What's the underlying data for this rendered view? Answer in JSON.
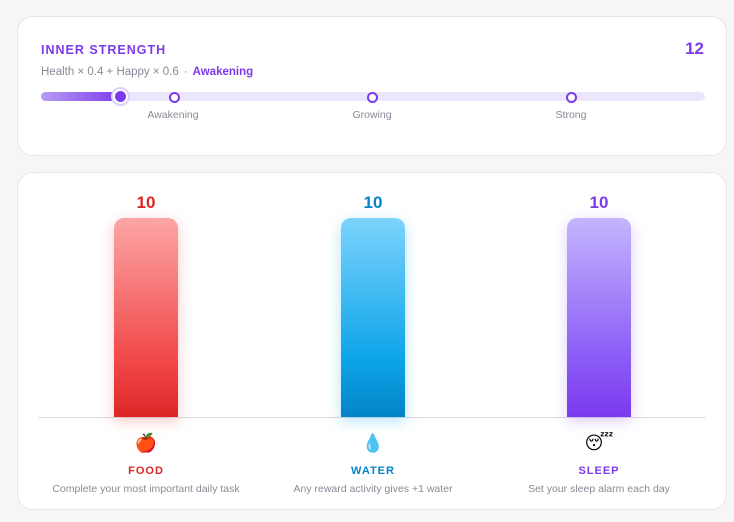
{
  "strength": {
    "title": "INNER STRENGTH",
    "score": "12",
    "formula": "Health × 0.4 + Happy × 0.6",
    "separator": "·",
    "stage": "Awakening",
    "progress_fraction": 0.12,
    "milestones": [
      "Awakening",
      "Growing",
      "Strong"
    ]
  },
  "stats": {
    "food": {
      "value": "10",
      "icon": "apple-icon",
      "glyph": "🍎",
      "label": "FOOD",
      "description": "Complete your most important daily task",
      "color": "#dc2626"
    },
    "water": {
      "value": "10",
      "icon": "droplet-icon",
      "glyph": "💧",
      "label": "WATER",
      "description": "Any reward activity gives +1 water",
      "color": "#0284c7"
    },
    "sleep": {
      "value": "10",
      "icon": "sleeping-face-icon",
      "glyph": "😴",
      "label": "SLEEP",
      "description": "Set your sleep alarm each day",
      "color": "#7c3aed"
    }
  }
}
